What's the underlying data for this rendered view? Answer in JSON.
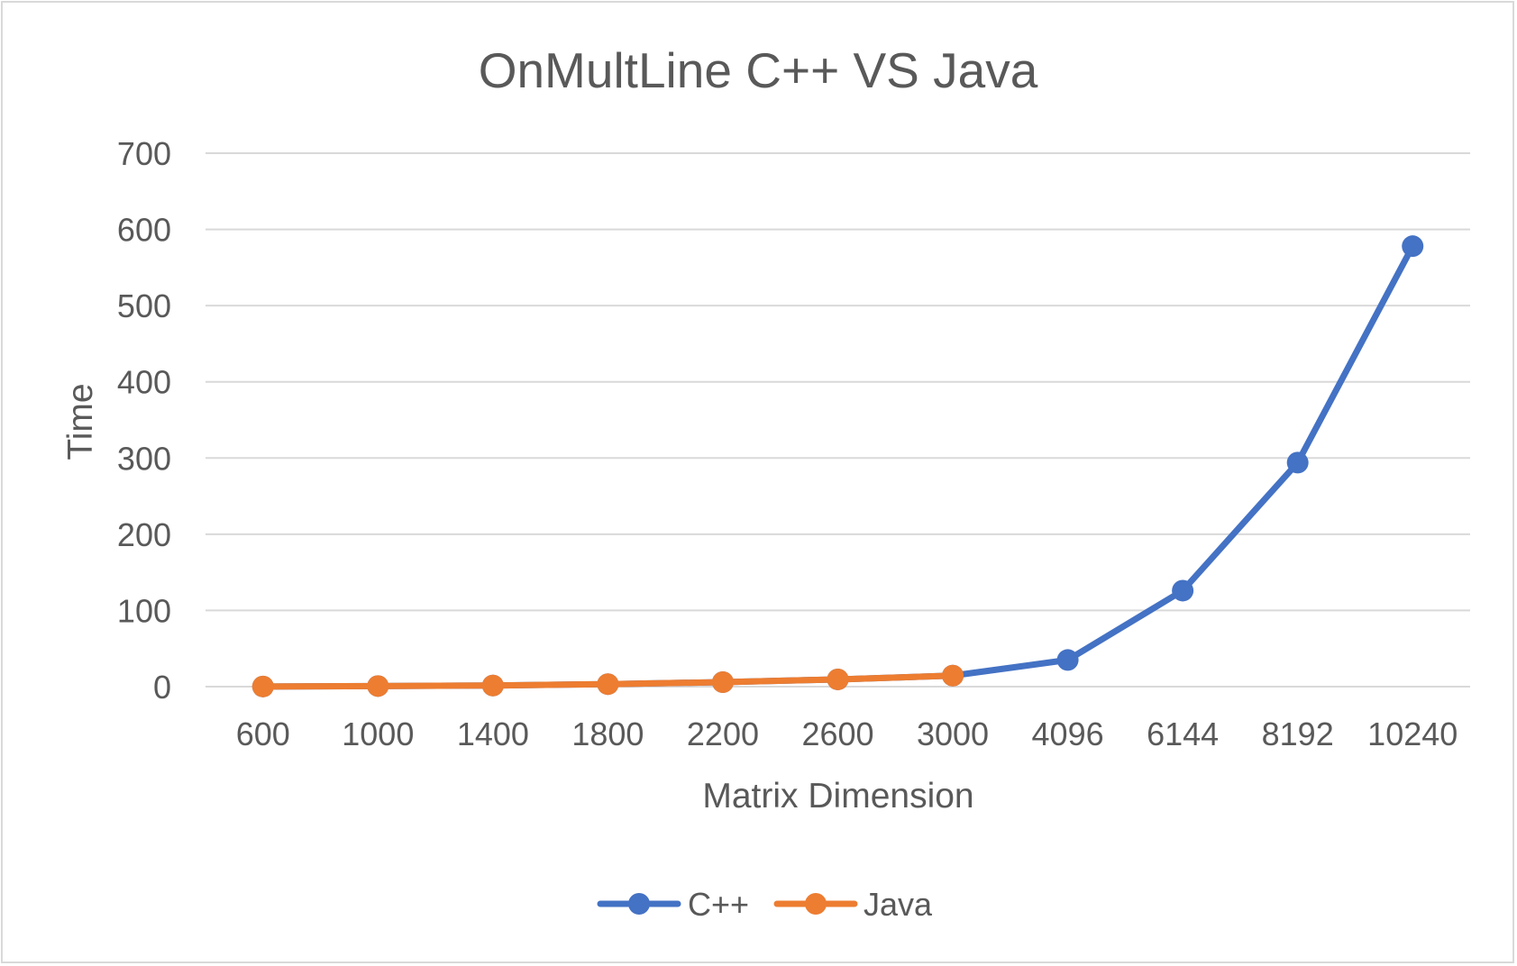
{
  "chart_data": {
    "type": "line",
    "title": "OnMultLine C++ VS Java",
    "xlabel": "Matrix Dimension",
    "ylabel": "Time",
    "categories": [
      "600",
      "1000",
      "1400",
      "1800",
      "2200",
      "2600",
      "3000",
      "4096",
      "6144",
      "8192",
      "10240"
    ],
    "ylim": [
      0,
      700
    ],
    "yticks": [
      "0",
      "100",
      "200",
      "300",
      "400",
      "500",
      "600",
      "700"
    ],
    "grid": true,
    "legend_position": "bottom",
    "series": [
      {
        "name": "C++",
        "color": "#4472c4",
        "values": [
          0.2,
          0.8,
          1.5,
          3.3,
          5.9,
          9.5,
          14.5,
          35,
          126,
          294,
          578
        ]
      },
      {
        "name": "Java",
        "color": "#ed7d31",
        "values": [
          0.2,
          0.8,
          1.5,
          3.3,
          5.9,
          9.5,
          14.5,
          null,
          null,
          null,
          null
        ]
      }
    ]
  }
}
